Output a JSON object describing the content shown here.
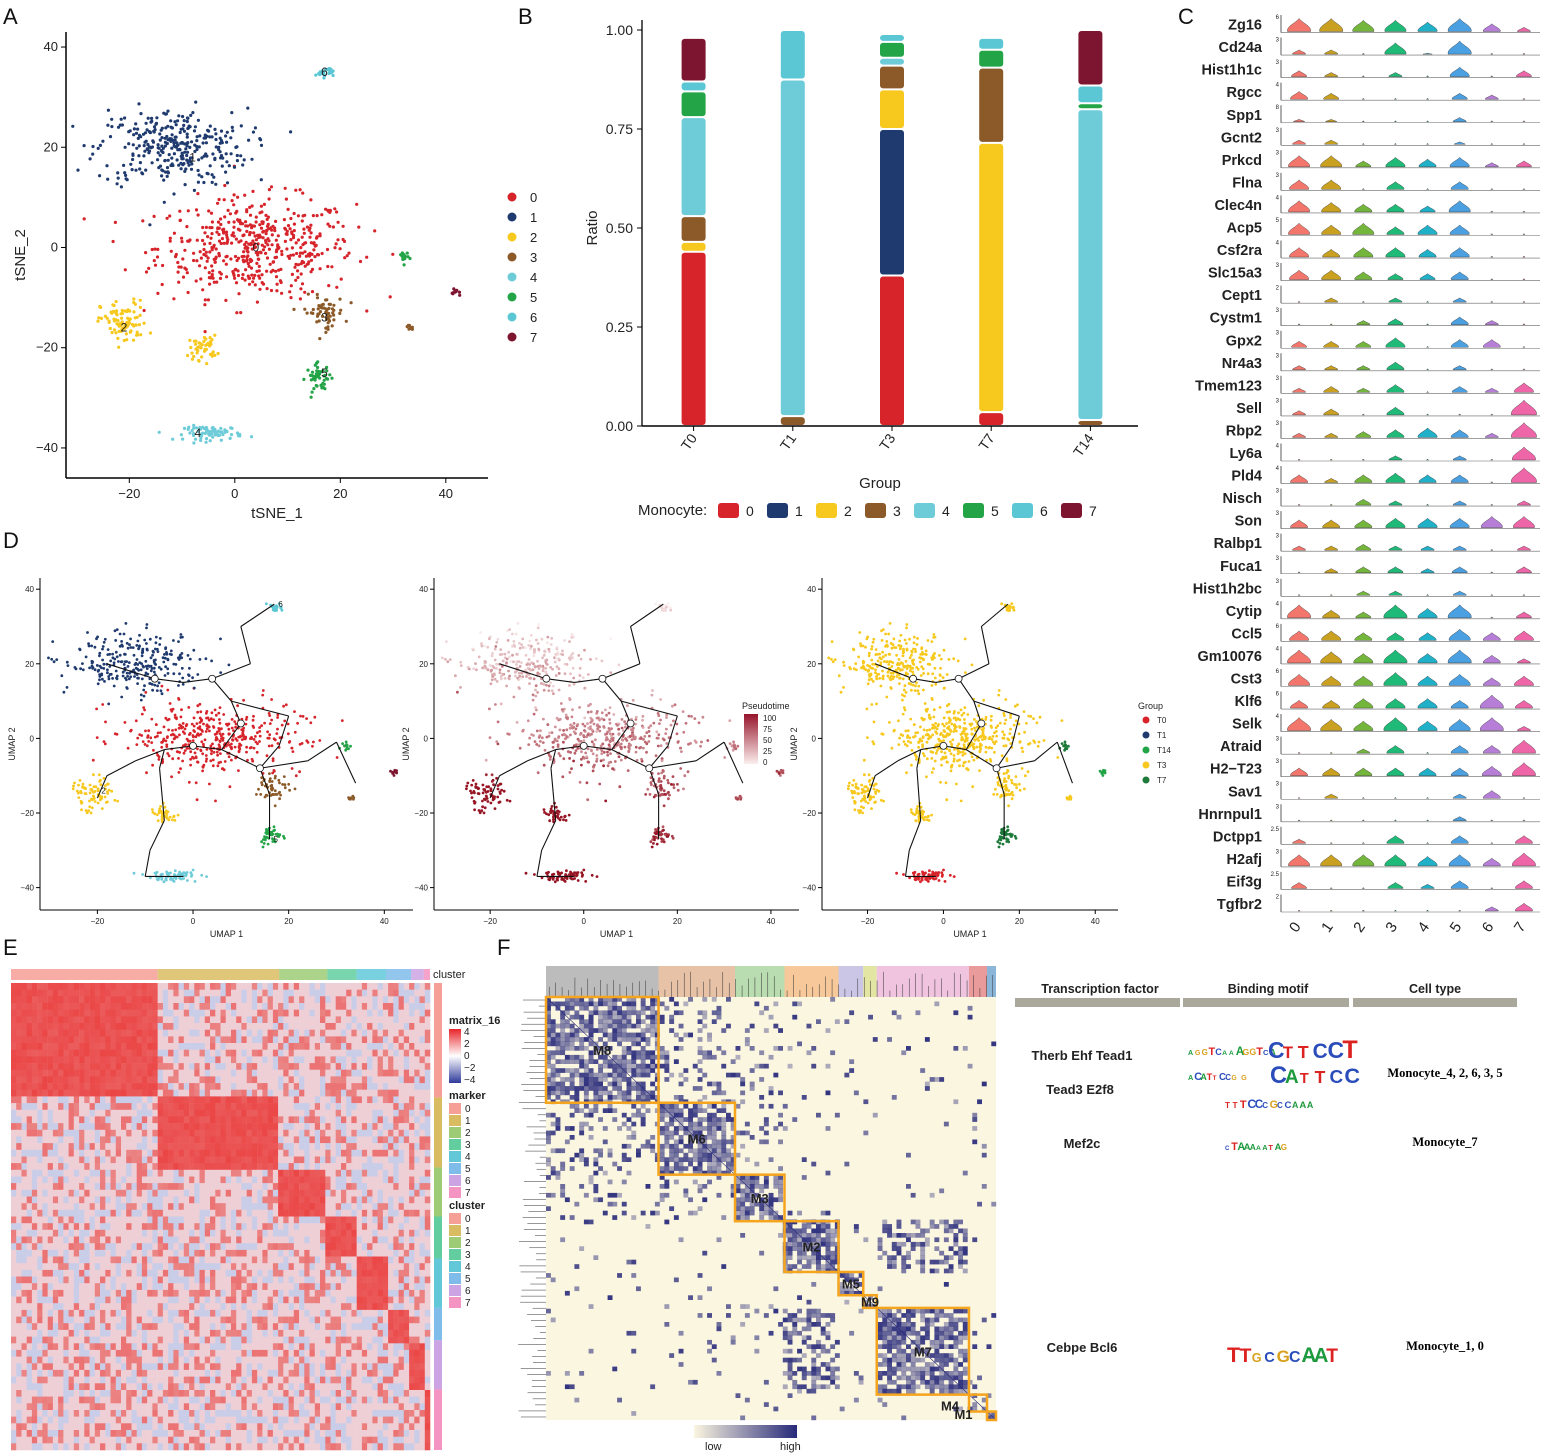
{
  "panels": {
    "a": "A",
    "b": "B",
    "c": "C",
    "d": "D",
    "e": "E",
    "f": "F"
  },
  "colors": {
    "cluster": [
      "#d7242b",
      "#1f3a6e",
      "#f7c81d",
      "#8c5a28",
      "#6ecbd8",
      "#22a447",
      "#5bc7d5",
      "#7e1530"
    ],
    "group": {
      "T0": "#d7242b",
      "T1": "#1f3a6e",
      "T14": "#22a447",
      "T3": "#f7c81d",
      "T7": "#1d7a3a"
    },
    "violin": [
      "#f2766b",
      "#c9a020",
      "#74b53c",
      "#1fb978",
      "#20b1c8",
      "#4aa0e0",
      "#b77ed8",
      "#ee66a8"
    ],
    "orange_box": "#f4a41d",
    "heat_low": "#fbf6e0",
    "heat_high": "#27297a"
  },
  "chart_data": [
    {
      "id": "A",
      "type": "scatter",
      "xlabel": "tSNE_1",
      "ylabel": "tSNE_2",
      "xlim": [
        -32,
        48
      ],
      "ylim": [
        -46,
        43
      ],
      "xticks": [
        -20,
        0,
        20,
        40
      ],
      "yticks": [
        -40,
        -20,
        0,
        20,
        40
      ],
      "legend_title": "",
      "legend": [
        "0",
        "1",
        "2",
        "3",
        "4",
        "5",
        "6",
        "7"
      ],
      "clusters": [
        {
          "label": "0",
          "cx": 4,
          "cy": 0,
          "sx": 17,
          "sy": 9,
          "n": 500
        },
        {
          "label": "1",
          "cx": -12,
          "cy": 20,
          "sx": 13,
          "sy": 7,
          "n": 320
        },
        {
          "label": "2",
          "cx": -21,
          "cy": -15,
          "sx": 4,
          "sy": 4,
          "n": 90
        },
        {
          "label": "2",
          "cx": -6,
          "cy": -20,
          "sx": 2.4,
          "sy": 2.2,
          "n": 45
        },
        {
          "label": "3",
          "cx": 17,
          "cy": -13,
          "sx": 3.5,
          "sy": 3,
          "n": 60
        },
        {
          "label": "3",
          "cx": 33,
          "cy": -16,
          "sx": 0.7,
          "sy": 0.5,
          "n": 8
        },
        {
          "label": "4",
          "cx": -4,
          "cy": -37,
          "sx": 5,
          "sy": 1.3,
          "n": 80
        },
        {
          "label": "5",
          "cx": 16,
          "cy": -26,
          "sx": 2.2,
          "sy": 2.4,
          "n": 50
        },
        {
          "label": "5",
          "cx": 32,
          "cy": -2,
          "sx": 0.8,
          "sy": 1.2,
          "n": 14
        },
        {
          "label": "6",
          "cx": 17,
          "cy": 35,
          "sx": 1.5,
          "sy": 0.9,
          "n": 26
        },
        {
          "label": "7",
          "cx": 42,
          "cy": -9,
          "sx": 0.8,
          "sy": 0.6,
          "n": 12
        }
      ],
      "point_labels": [
        {
          "text": "0",
          "x": 4,
          "y": 0
        },
        {
          "text": "1",
          "x": -8,
          "y": 18
        },
        {
          "text": "2",
          "x": -21,
          "y": -16
        },
        {
          "text": "3",
          "x": 17,
          "y": -14
        },
        {
          "text": "4",
          "x": -7,
          "y": -37
        },
        {
          "text": "5",
          "x": 17,
          "y": -25
        },
        {
          "text": "6",
          "x": 17,
          "y": 35
        }
      ]
    },
    {
      "id": "B",
      "type": "bar",
      "xlabel": "Group",
      "ylabel": "Ratio",
      "ylim": [
        0,
        1
      ],
      "yticks": [
        "0.00",
        "0.25",
        "0.50",
        "0.75",
        "1.00"
      ],
      "categories": [
        "T0",
        "T1",
        "T3",
        "T7",
        "T14"
      ],
      "legend_title": "Monocyte:",
      "legend": [
        "0",
        "1",
        "2",
        "3",
        "4",
        "5",
        "6",
        "7"
      ],
      "series": [
        {
          "name": "0",
          "values": [
            0.44,
            0,
            0.38,
            0.035,
            0
          ]
        },
        {
          "name": "1",
          "values": [
            0,
            0,
            0.37,
            0,
            0
          ]
        },
        {
          "name": "2",
          "values": [
            0.025,
            0,
            0.1,
            0.68,
            0
          ]
        },
        {
          "name": "3",
          "values": [
            0.065,
            0.025,
            0.06,
            0.19,
            0.015
          ]
        },
        {
          "name": "4",
          "values": [
            0.25,
            0.85,
            0.02,
            0,
            0.785
          ]
        },
        {
          "name": "5",
          "values": [
            0.065,
            0,
            0.04,
            0.045,
            0.015
          ]
        },
        {
          "name": "6",
          "values": [
            0.025,
            0.125,
            0.02,
            0.03,
            0.045
          ]
        },
        {
          "name": "7",
          "values": [
            0.11,
            0,
            0,
            0,
            0.14
          ]
        }
      ]
    },
    {
      "id": "C",
      "type": "violin",
      "categories": [
        "0",
        "1",
        "2",
        "3",
        "4",
        "5",
        "6",
        "7"
      ],
      "genes": [
        {
          "name": "Zg16",
          "max": "6",
          "v": [
            0.8,
            0.8,
            0.7,
            0.7,
            0.6,
            0.8,
            0.5,
            0.3
          ]
        },
        {
          "name": "Cd24a",
          "max": "3",
          "v": [
            0.3,
            0.3,
            0.05,
            0.7,
            0.1,
            0.8,
            0.05,
            0.05
          ]
        },
        {
          "name": "Hist1h1c",
          "max": "3",
          "v": [
            0.4,
            0.3,
            0.05,
            0.3,
            0.05,
            0.6,
            0.05,
            0.4
          ]
        },
        {
          "name": "Rgcc",
          "max": "4",
          "v": [
            0.5,
            0.4,
            0.05,
            0.05,
            0.05,
            0.4,
            0.3,
            0.05
          ]
        },
        {
          "name": "Spp1",
          "max": "8",
          "v": [
            0.2,
            0.2,
            0.05,
            0.05,
            0.05,
            0.3,
            0.05,
            0.05
          ]
        },
        {
          "name": "Gcnt2",
          "max": "3",
          "v": [
            0.3,
            0.3,
            0.05,
            0.05,
            0.05,
            0.2,
            0.05,
            0.05
          ]
        },
        {
          "name": "Prkcd",
          "max": "3",
          "v": [
            0.7,
            0.7,
            0.4,
            0.6,
            0.5,
            0.6,
            0.3,
            0.4
          ]
        },
        {
          "name": "Flna",
          "max": "3",
          "v": [
            0.6,
            0.6,
            0.05,
            0.5,
            0.05,
            0.5,
            0.05,
            0.05
          ]
        },
        {
          "name": "Clec4n",
          "max": "4",
          "v": [
            0.7,
            0.6,
            0.5,
            0.5,
            0.4,
            0.7,
            0.05,
            0.05
          ]
        },
        {
          "name": "Acp5",
          "max": "5",
          "v": [
            0.7,
            0.6,
            0.7,
            0.5,
            0.6,
            0.6,
            0.05,
            0.05
          ]
        },
        {
          "name": "Csf2ra",
          "max": "4",
          "v": [
            0.6,
            0.5,
            0.6,
            0.6,
            0.5,
            0.6,
            0.05,
            0.05
          ]
        },
        {
          "name": "Slc15a3",
          "max": "3",
          "v": [
            0.6,
            0.6,
            0.5,
            0.4,
            0.4,
            0.5,
            0.05,
            0.05
          ]
        },
        {
          "name": "Cept1",
          "max": "2",
          "v": [
            0.05,
            0.3,
            0.05,
            0.3,
            0.05,
            0.3,
            0.05,
            0.05
          ]
        },
        {
          "name": "Cystm1",
          "max": "3",
          "v": [
            0.05,
            0.05,
            0.3,
            0.4,
            0.05,
            0.5,
            0.3,
            0.05
          ]
        },
        {
          "name": "Gpx2",
          "max": "3",
          "v": [
            0.4,
            0.4,
            0.4,
            0.6,
            0.05,
            0.5,
            0.5,
            0.05
          ]
        },
        {
          "name": "Nr4a3",
          "max": "3",
          "v": [
            0.3,
            0.3,
            0.3,
            0.5,
            0.05,
            0.3,
            0.05,
            0.05
          ]
        },
        {
          "name": "Tmem123",
          "max": "3",
          "v": [
            0.3,
            0.4,
            0.3,
            0.5,
            0.05,
            0.4,
            0.3,
            0.6
          ]
        },
        {
          "name": "Sell",
          "max": "3",
          "v": [
            0.3,
            0.4,
            0.05,
            0.5,
            0.05,
            0.05,
            0.05,
            0.9
          ]
        },
        {
          "name": "Rbp2",
          "max": "3",
          "v": [
            0.3,
            0.3,
            0.4,
            0.5,
            0.6,
            0.5,
            0.3,
            0.9
          ]
        },
        {
          "name": "Ly6a",
          "max": "4",
          "v": [
            0.05,
            0.05,
            0.05,
            0.3,
            0.05,
            0.3,
            0.05,
            0.8
          ]
        },
        {
          "name": "Pld4",
          "max": "4",
          "v": [
            0.5,
            0.3,
            0.5,
            0.6,
            0.5,
            0.5,
            0.05,
            0.9
          ]
        },
        {
          "name": "Nisch",
          "max": "3",
          "v": [
            0.05,
            0.05,
            0.4,
            0.3,
            0.05,
            0.3,
            0.05,
            0.3
          ]
        },
        {
          "name": "Son",
          "max": "3",
          "v": [
            0.5,
            0.5,
            0.5,
            0.6,
            0.6,
            0.6,
            0.7,
            0.7
          ]
        },
        {
          "name": "Ralbp1",
          "max": "3",
          "v": [
            0.3,
            0.3,
            0.4,
            0.3,
            0.3,
            0.3,
            0.05,
            0.3
          ]
        },
        {
          "name": "Fuca1",
          "max": "3",
          "v": [
            0.05,
            0.3,
            0.4,
            0.4,
            0.3,
            0.4,
            0.05,
            0.4
          ]
        },
        {
          "name": "Hist1h2bc",
          "max": "3",
          "v": [
            0.05,
            0.05,
            0.3,
            0.3,
            0.05,
            0.3,
            0.05,
            0.05
          ]
        },
        {
          "name": "Cytip",
          "max": "4",
          "v": [
            0.8,
            0.5,
            0.4,
            0.8,
            0.6,
            0.8,
            0.05,
            0.4
          ]
        },
        {
          "name": "Ccl5",
          "max": "6",
          "v": [
            0.6,
            0.6,
            0.5,
            0.5,
            0.5,
            0.7,
            0.5,
            0.6
          ]
        },
        {
          "name": "Gm10076",
          "max": "4",
          "v": [
            0.8,
            0.7,
            0.6,
            0.8,
            0.6,
            0.8,
            0.5,
            0.3
          ]
        },
        {
          "name": "Cst3",
          "max": "6",
          "v": [
            0.7,
            0.6,
            0.6,
            0.8,
            0.6,
            0.7,
            0.5,
            0.6
          ]
        },
        {
          "name": "Klf6",
          "max": "6",
          "v": [
            0.5,
            0.5,
            0.6,
            0.6,
            0.6,
            0.5,
            0.8,
            0.5
          ]
        },
        {
          "name": "Selk",
          "max": "4",
          "v": [
            0.8,
            0.7,
            0.6,
            0.8,
            0.6,
            0.7,
            0.8,
            0.3
          ]
        },
        {
          "name": "Atraid",
          "max": "3",
          "v": [
            0.05,
            0.05,
            0.3,
            0.5,
            0.05,
            0.5,
            0.5,
            0.8
          ]
        },
        {
          "name": "H2−T23",
          "max": "3",
          "v": [
            0.5,
            0.5,
            0.5,
            0.5,
            0.5,
            0.5,
            0.6,
            0.8
          ]
        },
        {
          "name": "Sav1",
          "max": "3",
          "v": [
            0.05,
            0.3,
            0.05,
            0.05,
            0.05,
            0.3,
            0.5,
            0.05
          ]
        },
        {
          "name": "Hnrnpul1",
          "max": "3",
          "v": [
            0.05,
            0.05,
            0.05,
            0.05,
            0.05,
            0.3,
            0.05,
            0.05
          ]
        },
        {
          "name": "Dctpp1",
          "max": "2.5",
          "v": [
            0.3,
            0.05,
            0.05,
            0.5,
            0.05,
            0.5,
            0.05,
            0.5
          ]
        },
        {
          "name": "H2afj",
          "max": "3",
          "v": [
            0.7,
            0.7,
            0.7,
            0.7,
            0.6,
            0.7,
            0.5,
            0.8
          ]
        },
        {
          "name": "Eif3g",
          "max": "2.5",
          "v": [
            0.4,
            0.05,
            0.05,
            0.4,
            0.3,
            0.5,
            0.05,
            0.5
          ]
        },
        {
          "name": "Tgfbr2",
          "max": "2",
          "v": [
            0.05,
            0.05,
            0.05,
            0.05,
            0.05,
            0.05,
            0.3,
            0.5
          ]
        }
      ]
    },
    {
      "id": "D",
      "type": "scatter",
      "subplots": [
        "cluster",
        "pseudotime",
        "group"
      ],
      "xlabel": "UMAP 1",
      "ylabel": "UMAP 2",
      "xlim": [
        -32,
        46
      ],
      "ylim": [
        -46,
        43
      ],
      "xticks": [
        -20,
        0,
        20,
        40
      ],
      "yticks": [
        -40,
        -20,
        0,
        20,
        40
      ],
      "pseudotime_legend": {
        "title": "Pseudotime",
        "ticks": [
          "100",
          "75",
          "50",
          "25",
          "0"
        ]
      },
      "group_legend": {
        "title": "Group",
        "items": [
          "T0",
          "T1",
          "T14",
          "T3",
          "T7"
        ]
      },
      "node_labels": [
        {
          "text": "6",
          "x": 17,
          "y": 36
        },
        {
          "text": "2",
          "x": -20,
          "y": -14
        },
        {
          "text": "5",
          "x": 16,
          "y": -27
        }
      ]
    },
    {
      "id": "E",
      "type": "heatmap",
      "legend_title": "matrix_16",
      "scale_ticks": [
        "4",
        "2",
        "0",
        "−2",
        "−4"
      ],
      "annotation_top": "cluster",
      "annotation_right": "marker",
      "annotation_bottom": "marker",
      "marker_legend_title": "marker",
      "cluster_legend_title": "cluster",
      "levels": [
        "0",
        "1",
        "2",
        "3",
        "4",
        "5",
        "6",
        "7"
      ]
    },
    {
      "id": "F",
      "type": "heatmap",
      "modules": [
        "M8",
        "M6",
        "M3",
        "M2",
        "M5",
        "M9",
        "M7",
        "M4",
        "M1"
      ],
      "colorbar": {
        "low": "low",
        "high": "high"
      },
      "table": {
        "headers": [
          "Transcription factor",
          "Binding motif",
          "Cell type"
        ],
        "rows": [
          {
            "tf": "Therb  Ehf  Tead1",
            "tf2": "Tead3  E2f8",
            "motifs": [
              "AGGTCAAAGGTCA",
              "CTTCCT",
              "ACATTCCG G",
              "CATTCC",
              "TTTCCCGCCAAA"
            ],
            "cell": "Monocyte_4, 2, 6, 3, 5"
          },
          {
            "tf": "Mef2c",
            "tf2": "",
            "motifs": [
              "CTAAAAATAG"
            ],
            "cell": "Monocyte_7"
          },
          {
            "tf": "Cebpe  Bcl6",
            "tf2": "",
            "motifs": [
              "TTGCGCAAT"
            ],
            "cell": "Monocyte_1, 0"
          }
        ]
      }
    }
  ]
}
